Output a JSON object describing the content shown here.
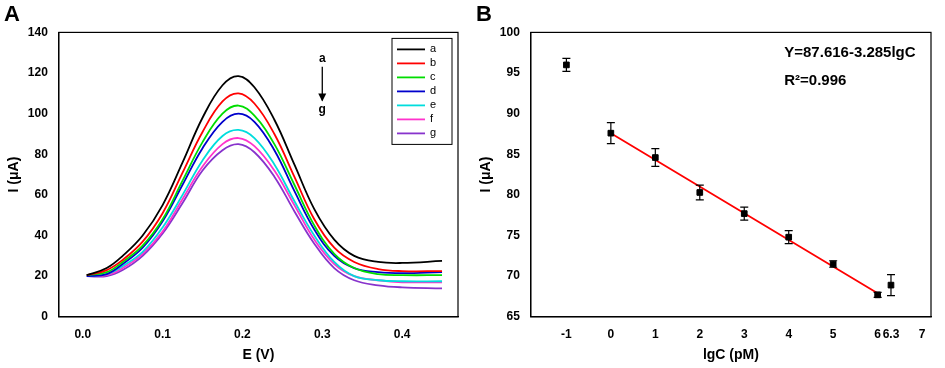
{
  "chart_data": [
    {
      "type": "line",
      "title": "A",
      "xlabel": "E (V)",
      "ylabel": "I (μA)",
      "x": [
        0.005,
        0.03,
        0.05,
        0.075,
        0.1,
        0.125,
        0.15,
        0.175,
        0.195,
        0.215,
        0.24,
        0.265,
        0.29,
        0.315,
        0.34,
        0.37,
        0.4,
        0.45
      ],
      "series": [
        {
          "name": "a",
          "color": "#000000",
          "values": [
            20.5,
            24,
            30,
            40,
            55,
            76,
            98,
            114,
            118.5,
            113,
            97,
            75,
            53,
            38,
            30,
            27,
            26.5,
            27.5
          ]
        },
        {
          "name": "b",
          "color": "#ff0000",
          "values": [
            20.5,
            23,
            28,
            37,
            51,
            71,
            91,
            106,
            110,
            105,
            90,
            69,
            48,
            34,
            27,
            23.5,
            22.5,
            22.5
          ]
        },
        {
          "name": "c",
          "color": "#00dd00",
          "values": [
            20.5,
            22,
            27,
            35,
            48,
            67,
            86,
            100,
            104,
            99,
            85,
            65,
            45,
            31,
            24,
            21,
            20.5,
            20.5
          ]
        },
        {
          "name": "d",
          "color": "#0000cc",
          "values": [
            20,
            21,
            26,
            34,
            47,
            65,
            83,
            96,
            100,
            96,
            82,
            62,
            43,
            30,
            24,
            22,
            21.5,
            22
          ]
        },
        {
          "name": "e",
          "color": "#00dddd",
          "values": [
            20,
            21,
            25,
            32,
            44,
            60,
            77,
            89,
            92,
            88,
            75,
            57,
            40,
            27,
            20,
            18,
            17.5,
            17.5
          ]
        },
        {
          "name": "f",
          "color": "#ff33cc",
          "values": [
            20,
            20.5,
            24,
            31,
            42,
            58,
            74,
            85,
            88,
            84,
            72,
            55,
            38,
            26,
            20,
            18,
            17,
            17
          ]
        },
        {
          "name": "g",
          "color": "#8833cc",
          "values": [
            20,
            20,
            23,
            30,
            41,
            56,
            72,
            82,
            85,
            81,
            69,
            52,
            36,
            24,
            18,
            15.5,
            14.5,
            14
          ]
        }
      ],
      "xlim": [
        -0.03,
        0.47
      ],
      "xticks": [
        {
          "value": 0,
          "label": "0.0"
        },
        {
          "value": 0.1,
          "label": "0.1"
        },
        {
          "value": 0.2,
          "label": "0.2"
        },
        {
          "value": 0.3,
          "label": "0.3"
        },
        {
          "value": 0.4,
          "label": "0.4"
        }
      ],
      "ylim": [
        0,
        140
      ],
      "yticks": [
        0,
        20,
        40,
        60,
        80,
        100,
        120,
        140
      ],
      "grid": false,
      "legend": "upper right",
      "annotations": [
        {
          "text": "a",
          "x": 0.3,
          "y": 127
        },
        {
          "text": "g",
          "x": 0.3,
          "y": 102
        }
      ]
    },
    {
      "type": "scatter",
      "title": "B",
      "xlabel": "lgC (pM)",
      "ylabel": "I (μA)",
      "series": [
        {
          "x": [
            -1,
            0,
            1,
            2,
            3,
            4,
            5,
            6,
            6.3
          ],
          "values": [
            96,
            87.6,
            84.6,
            80.3,
            77.7,
            74.8,
            71.5,
            67.7,
            68.9
          ],
          "errors": [
            0.8,
            1.3,
            1.1,
            0.9,
            0.8,
            0.8,
            0.4,
            0.3,
            1.3
          ],
          "color": "#000000",
          "marker": "square"
        },
        {
          "type": "line",
          "x": [
            0,
            6
          ],
          "values": [
            87.6,
            67.9
          ],
          "color": "#ff0000",
          "marker": "none"
        }
      ],
      "xlim": [
        -1.8,
        7.2
      ],
      "xticks": [
        -1,
        0,
        1,
        2,
        3,
        4,
        5,
        6,
        6.3,
        7
      ],
      "ylim": [
        65,
        100
      ],
      "yticks": [
        65,
        70,
        75,
        80,
        85,
        90,
        95,
        100
      ],
      "grid": false,
      "annotations": [
        {
          "text": "Y=87.616-3.285lgC",
          "x": 3.9,
          "y": 97.5
        },
        {
          "text": "R²=0.996",
          "x": 3.9,
          "y": 94
        }
      ]
    }
  ]
}
